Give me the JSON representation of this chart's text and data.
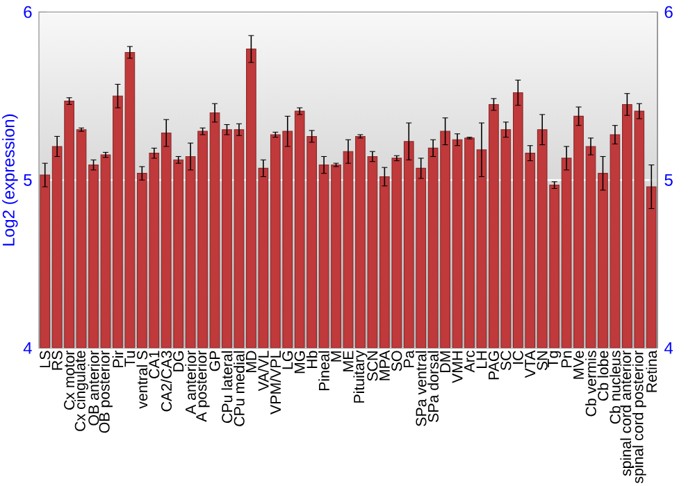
{
  "chart_data": {
    "type": "bar",
    "ylabel": "Log2 (expression)",
    "categories": [
      "LS",
      "RS",
      "Cx motor",
      "Cx cingulate",
      "OB anterior",
      "OB posterior",
      "Pir",
      "Tu",
      "ventral S",
      "CA1",
      "CA2/CA3",
      "DG",
      "A anterior",
      "A posterior",
      "GP",
      "CPu lateral",
      "CPu medial",
      "MD",
      "VA/VL",
      "VPM/VPL",
      "LG",
      "MG",
      "Hb",
      "Pineal",
      "M",
      "ME",
      "Pituitary",
      "SCN",
      "MPA",
      "SO",
      "Pa",
      "SPa ventral",
      "SPa dorsal",
      "DM",
      "VMH",
      "Arc",
      "LH",
      "PAG",
      "SC",
      "IC",
      "VTA",
      "SN",
      "Tg",
      "Pn",
      "MVe",
      "Cb vermis",
      "Cb lobe",
      "Cb nucleus",
      "spinal cord anterior",
      "spinal cord posterior",
      "Retina"
    ],
    "values": [
      5.03,
      5.2,
      5.47,
      5.3,
      5.09,
      5.15,
      5.5,
      5.76,
      5.04,
      5.16,
      5.28,
      5.12,
      5.14,
      5.29,
      5.4,
      5.3,
      5.3,
      5.78,
      5.07,
      5.27,
      5.29,
      5.41,
      5.26,
      5.09,
      5.09,
      5.17,
      5.26,
      5.14,
      5.02,
      5.13,
      5.23,
      5.07,
      5.19,
      5.29,
      5.24,
      5.25,
      5.18,
      5.45,
      5.3,
      5.52,
      5.16,
      5.3,
      4.97,
      5.13,
      5.38,
      5.2,
      5.04,
      5.27,
      5.45,
      5.41,
      4.96
    ],
    "errors": [
      0.07,
      0.06,
      0.02,
      0.01,
      0.03,
      0.015,
      0.07,
      0.035,
      0.04,
      0.03,
      0.08,
      0.02,
      0.08,
      0.02,
      0.055,
      0.03,
      0.035,
      0.08,
      0.05,
      0.015,
      0.09,
      0.02,
      0.035,
      0.05,
      0.01,
      0.07,
      0.01,
      0.03,
      0.055,
      0.015,
      0.11,
      0.06,
      0.05,
      0.08,
      0.035,
      0.005,
      0.16,
      0.035,
      0.045,
      0.075,
      0.045,
      0.09,
      0.02,
      0.07,
      0.055,
      0.05,
      0.1,
      0.055,
      0.065,
      0.045,
      0.13
    ],
    "color": "#c0393b",
    "ylim": [
      4,
      6
    ],
    "yticks": [
      4,
      5,
      6
    ],
    "y2lim": [
      4,
      6
    ],
    "y2ticks": [
      4,
      5,
      6
    ],
    "grid": "y"
  }
}
